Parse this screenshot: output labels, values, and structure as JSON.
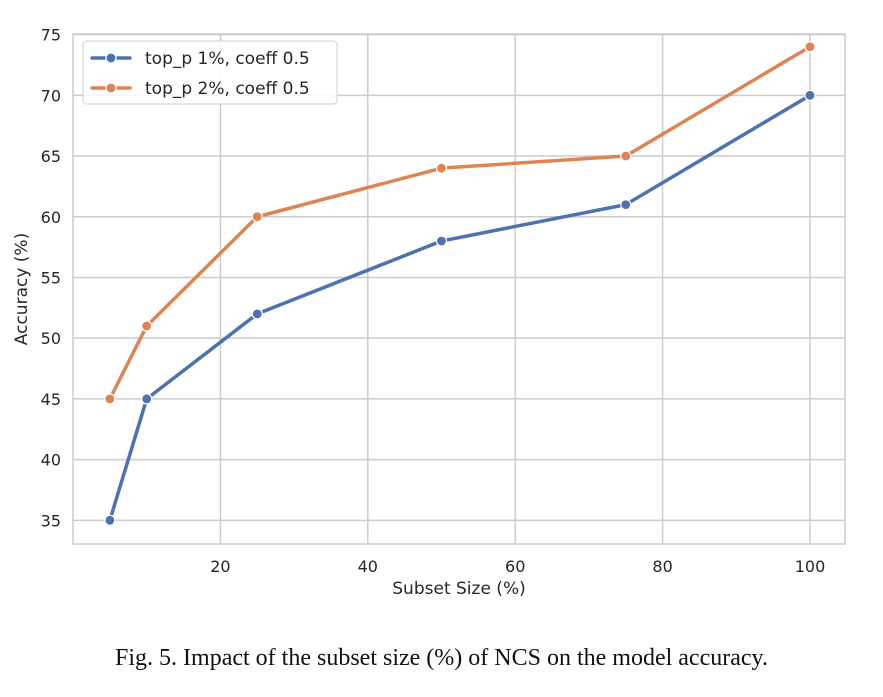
{
  "caption": "Fig. 5.  Impact of the subset size (%) of NCS on the model accuracy.",
  "chart_data": {
    "type": "line",
    "title": "",
    "xlabel": "Subset Size (%)",
    "ylabel": "Accuracy (%)",
    "xlim": [
      0,
      104.75
    ],
    "ylim": [
      33.05,
      75.05
    ],
    "xticks": [
      20,
      40,
      60,
      80,
      100
    ],
    "yticks": [
      35,
      40,
      45,
      50,
      55,
      60,
      65,
      70,
      75
    ],
    "grid": true,
    "legend_position": "upper-left",
    "x": [
      5,
      10,
      25,
      50,
      75,
      100
    ],
    "series": [
      {
        "name": "top_p 1%, coeff 0.5",
        "color": "#4c72b0",
        "values": [
          35,
          45,
          52,
          58,
          61,
          70
        ]
      },
      {
        "name": "top_p 2%, coeff 0.5",
        "color": "#dd8452",
        "values": [
          45,
          51,
          60,
          64,
          65,
          74
        ]
      }
    ]
  }
}
